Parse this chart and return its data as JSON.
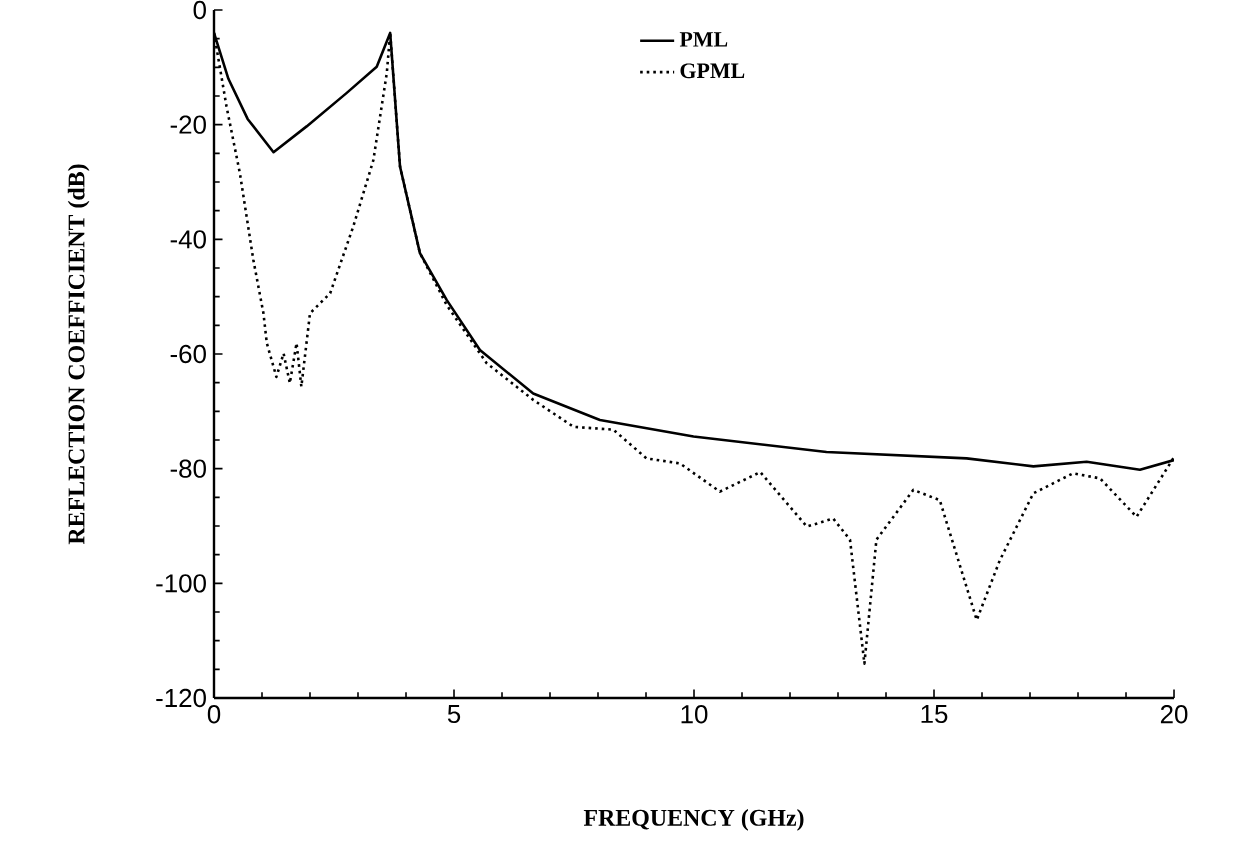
{
  "chart_data": {
    "type": "line",
    "xlabel": "FREQUENCY (GHz)",
    "ylabel": "REFLECTION COEFFICIENT (dB)",
    "xlim": [
      0,
      20
    ],
    "ylim": [
      -120,
      0
    ],
    "xticks": [
      0,
      5,
      10,
      15,
      20
    ],
    "yticks": [
      -120,
      -100,
      -80,
      -60,
      -40,
      -20,
      0
    ],
    "grid": false,
    "legend": "top",
    "marker": "none",
    "series": [
      {
        "name": "PML",
        "color": "#000000",
        "line_style": "solid",
        "x": [
          0,
          0.3,
          0.7,
          1.24,
          1.93,
          2.76,
          3.39,
          3.67,
          3.875,
          4.29,
          4.85,
          5.54,
          6.65,
          8.04,
          9.99,
          12.76,
          15.68,
          17.07,
          18.18,
          19.29,
          20
        ],
        "values": [
          -4,
          -12,
          -19,
          -24.8,
          -20.3,
          -14.5,
          -9.9,
          -4,
          -27.3,
          -42.4,
          -50.6,
          -59.3,
          -66.9,
          -71.5,
          -74.4,
          -77.1,
          -78.2,
          -79.6,
          -78.8,
          -80.2,
          -78.5
        ]
      },
      {
        "name": "GPML",
        "color": "#000000",
        "line_style": "dotted",
        "x": [
          0,
          0.26,
          0.54,
          0.82,
          1.03,
          1.1,
          1.3,
          1.45,
          1.58,
          1.72,
          1.82,
          2.0,
          2.42,
          2.9,
          3.32,
          3.6,
          3.67,
          3.875,
          4.29,
          4.85,
          5.68,
          6.65,
          7.49,
          8.32,
          9.01,
          9.71,
          10.54,
          11.38,
          12.35,
          12.9,
          13.25,
          13.55,
          13.8,
          14.57,
          15.12,
          15.89,
          16.37,
          17.07,
          17.9,
          18.46,
          19.22,
          20
        ],
        "values": [
          -4,
          -16.8,
          -28.5,
          -43.6,
          -52.9,
          -58.1,
          -64,
          -59.9,
          -65.1,
          -58.1,
          -65.7,
          -52.9,
          -49.4,
          -37.8,
          -26.2,
          -11,
          -4,
          -27.3,
          -42.4,
          -51.5,
          -61.6,
          -68,
          -72.7,
          -73.2,
          -78.2,
          -79.1,
          -84,
          -80.6,
          -90.1,
          -88.7,
          -92.4,
          -114,
          -92.4,
          -83.7,
          -85.5,
          -106.4,
          -96,
          -84.3,
          -80.8,
          -81.7,
          -88.4,
          -78
        ]
      }
    ]
  }
}
